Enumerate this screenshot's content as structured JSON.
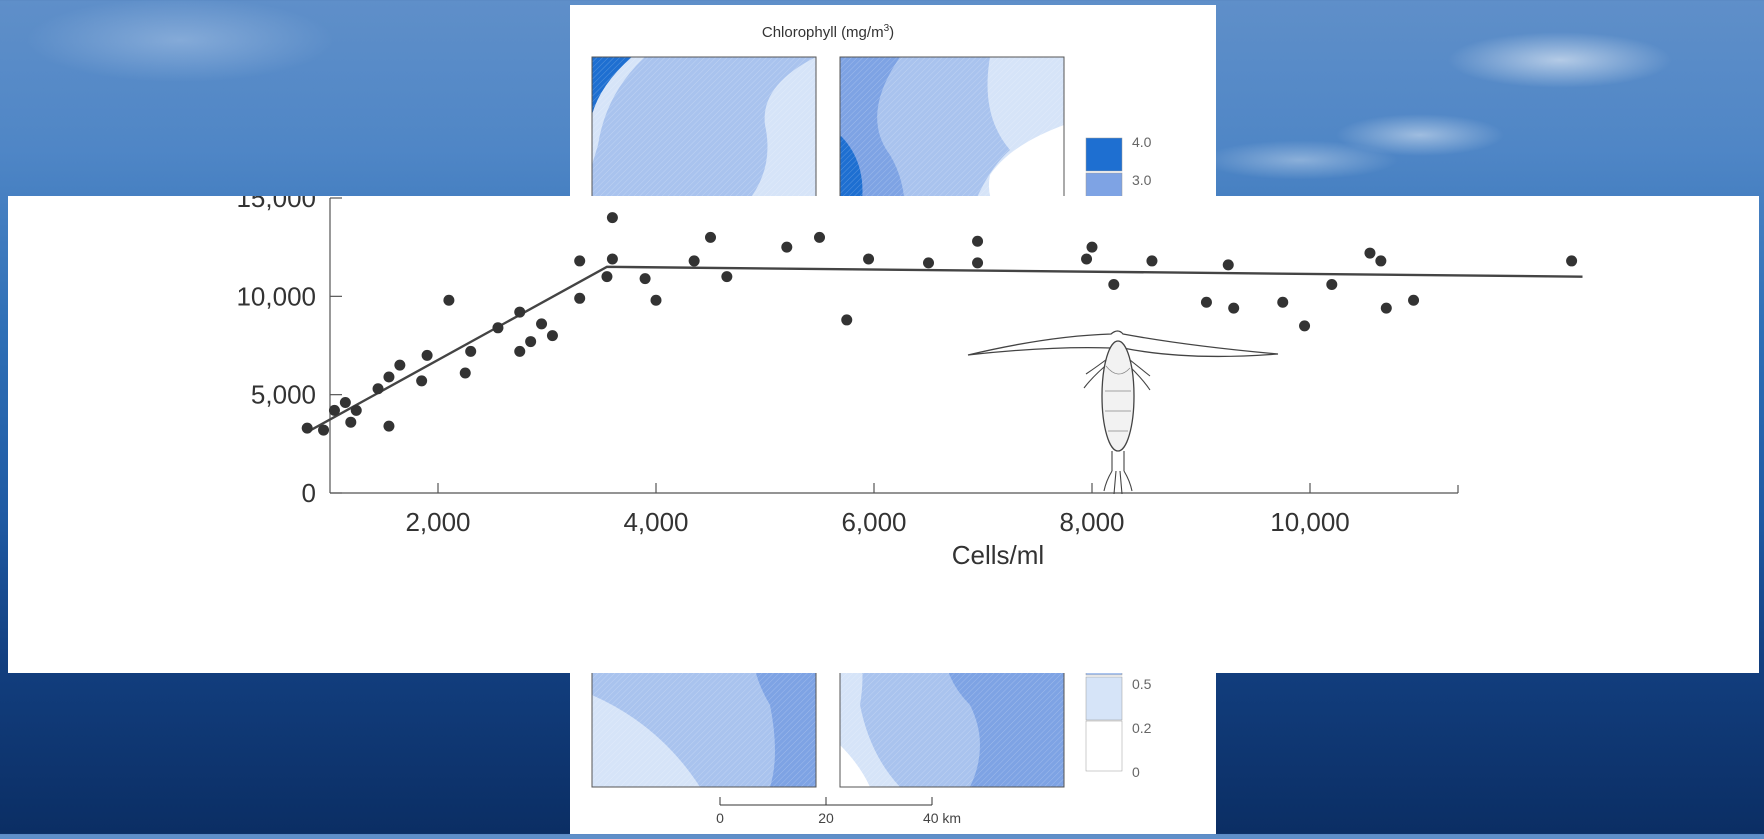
{
  "map_figure": {
    "title": "Chlorophyll (mg/m",
    "title_sup": "3",
    "title_close": ")",
    "legend": [
      "4.0",
      "3.0",
      "0.5",
      "0.2",
      "0"
    ],
    "legend_colors": [
      "#1e6fd1",
      "#7ea3e4",
      "#a9c3ee",
      "#d6e4f8",
      "#ffffff"
    ],
    "scale_ticks": [
      "0",
      "20",
      "40 km"
    ]
  },
  "chart_data": {
    "type": "scatter",
    "xlabel": "Cells/ml",
    "ylabel": "",
    "xlim": [
      0,
      12000
    ],
    "ylim": [
      0,
      15000
    ],
    "x_ticks": [
      2000,
      4000,
      6000,
      8000,
      10000
    ],
    "x_tick_labels": [
      "2,000",
      "4,000",
      "6,000",
      "8,000",
      "10,000"
    ],
    "y_ticks": [
      0,
      5000,
      10000,
      15000
    ],
    "y_tick_labels": [
      "0",
      "5,000",
      "10,000",
      "15,000"
    ],
    "grid": false,
    "points": [
      [
        800,
        3300
      ],
      [
        950,
        3200
      ],
      [
        1050,
        4200
      ],
      [
        1150,
        4600
      ],
      [
        1200,
        3600
      ],
      [
        1250,
        4200
      ],
      [
        1450,
        5300
      ],
      [
        1550,
        3400
      ],
      [
        1550,
        5900
      ],
      [
        1650,
        6500
      ],
      [
        1850,
        5700
      ],
      [
        1900,
        7000
      ],
      [
        2100,
        9800
      ],
      [
        2250,
        6100
      ],
      [
        2300,
        7200
      ],
      [
        2550,
        8400
      ],
      [
        2750,
        7200
      ],
      [
        2750,
        9200
      ],
      [
        2850,
        7700
      ],
      [
        2950,
        8600
      ],
      [
        3050,
        8000
      ],
      [
        3300,
        11800
      ],
      [
        3300,
        9900
      ],
      [
        3550,
        11000
      ],
      [
        3600,
        11900
      ],
      [
        3600,
        14000
      ],
      [
        3900,
        10900
      ],
      [
        4000,
        9800
      ],
      [
        4350,
        11800
      ],
      [
        4500,
        13000
      ],
      [
        4650,
        11000
      ],
      [
        5200,
        12500
      ],
      [
        5500,
        13000
      ],
      [
        5750,
        8800
      ],
      [
        5950,
        11900
      ],
      [
        6500,
        11700
      ],
      [
        6950,
        11700
      ],
      [
        6950,
        12800
      ],
      [
        7950,
        11900
      ],
      [
        8000,
        12500
      ],
      [
        8200,
        10600
      ],
      [
        8550,
        11800
      ],
      [
        9050,
        9700
      ],
      [
        9250,
        11600
      ],
      [
        9300,
        9400
      ],
      [
        9750,
        9700
      ],
      [
        9950,
        8500
      ],
      [
        10200,
        10600
      ],
      [
        10550,
        12200
      ],
      [
        10650,
        11800
      ],
      [
        10700,
        9400
      ],
      [
        10950,
        9800
      ],
      [
        12400,
        11800
      ]
    ],
    "fit_line": [
      [
        800,
        3100
      ],
      [
        3550,
        11500
      ],
      [
        12500,
        11000
      ]
    ]
  }
}
